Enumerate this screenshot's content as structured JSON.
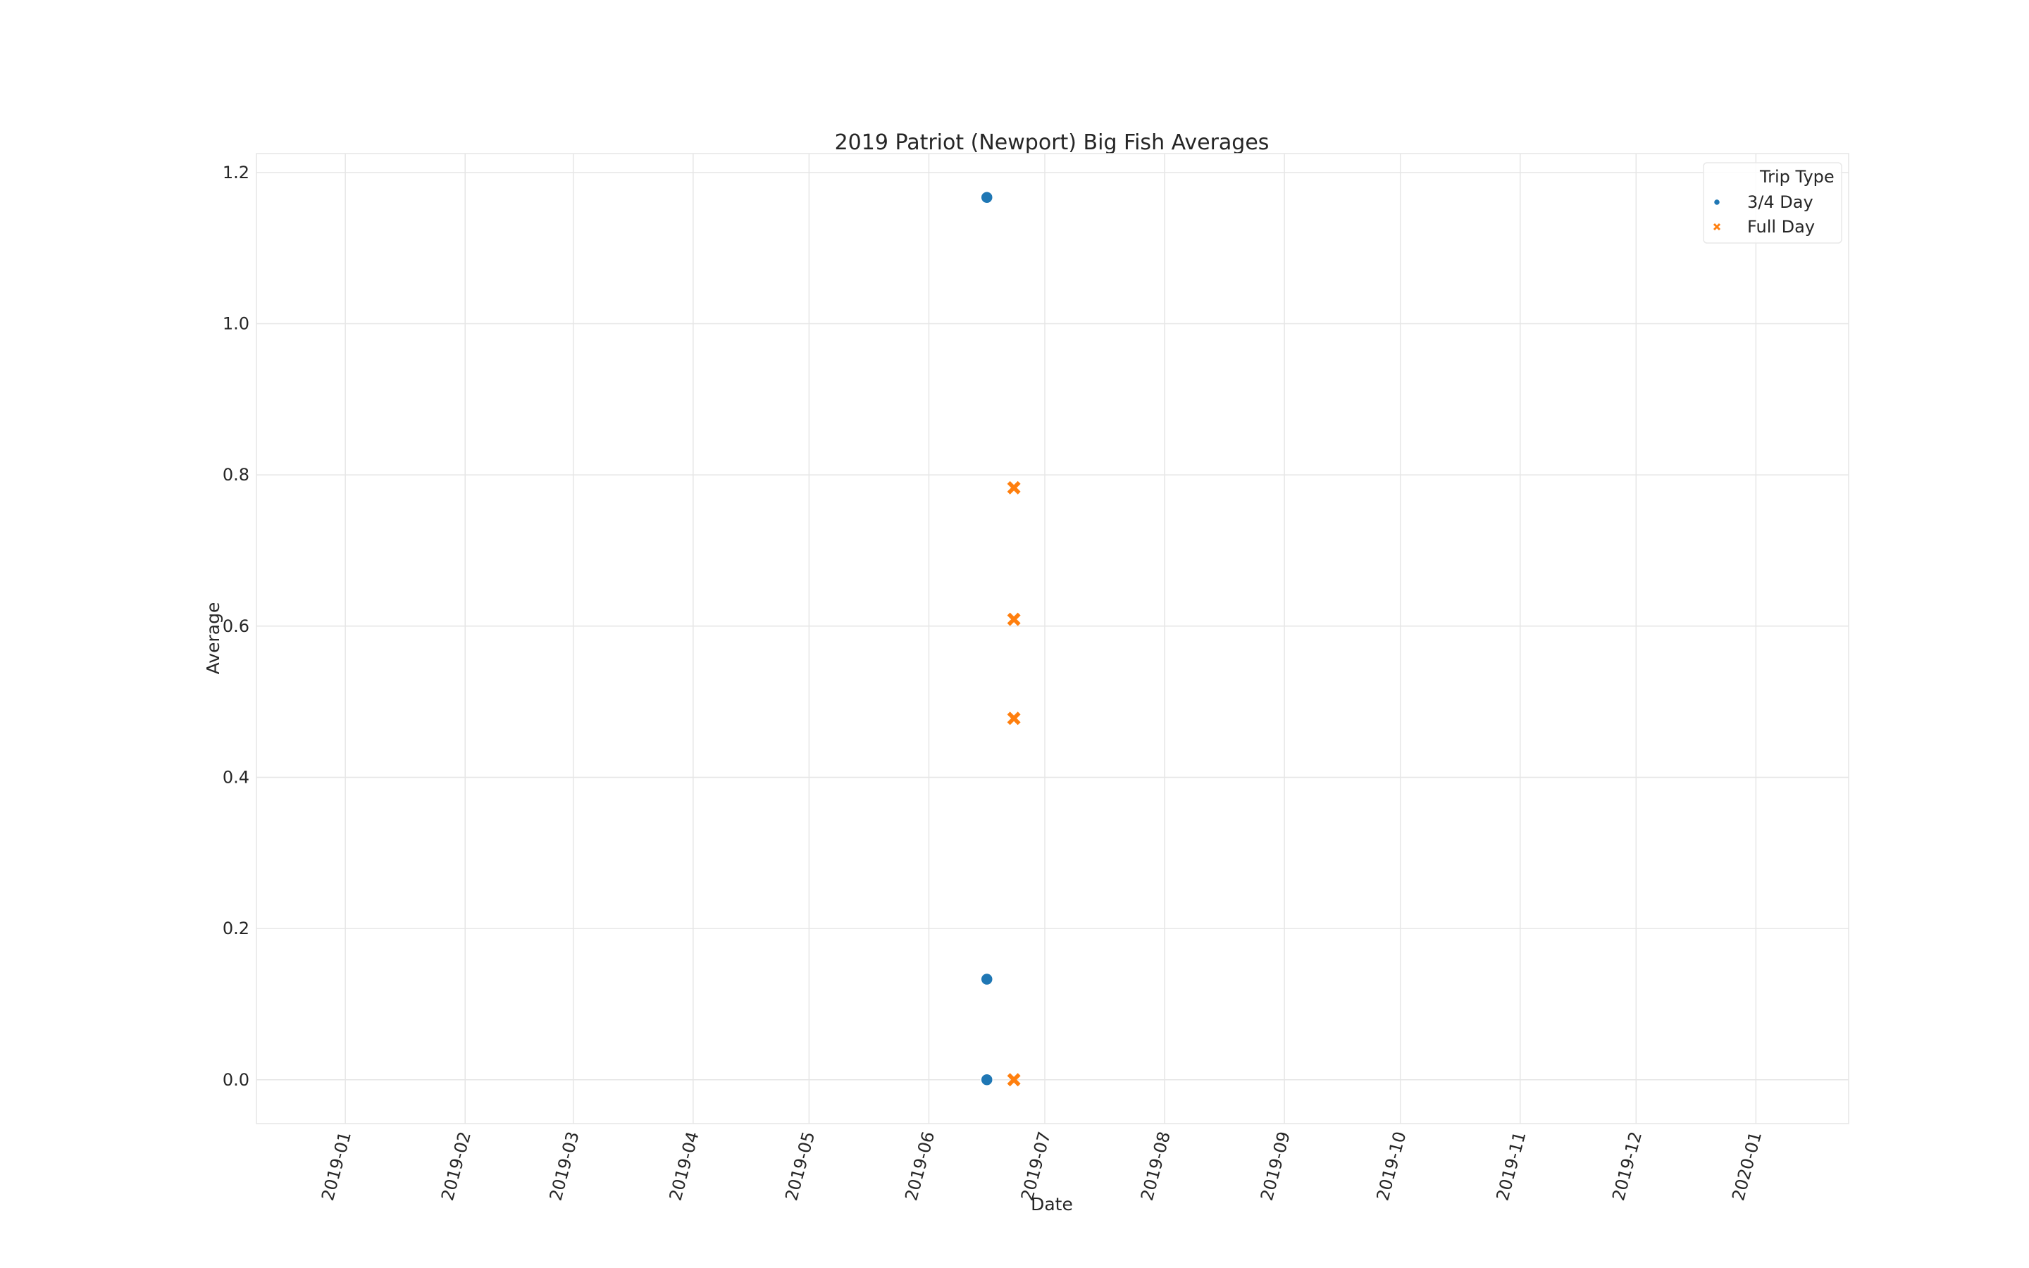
{
  "chart_data": {
    "type": "scatter",
    "title": "2019 Patriot (Newport) Big Fish Averages",
    "xlabel": "Date",
    "ylabel": "Average",
    "x_type": "date",
    "xlim": [
      "2018-12-09",
      "2020-01-25"
    ],
    "ylim": [
      -0.058,
      1.225
    ],
    "x_ticks": [
      "2019-01",
      "2019-02",
      "2019-03",
      "2019-04",
      "2019-05",
      "2019-06",
      "2019-07",
      "2019-08",
      "2019-09",
      "2019-10",
      "2019-11",
      "2019-12",
      "2020-01"
    ],
    "y_ticks": [
      "0.0",
      "0.2",
      "0.4",
      "0.6",
      "0.8",
      "1.0",
      "1.2"
    ],
    "grid": true,
    "legend": {
      "title": "Trip Type",
      "position": "top-right"
    },
    "series": [
      {
        "name": "3/4 Day",
        "marker": "circle",
        "color": "#1f77b4",
        "points": [
          {
            "x": "2019-06-16",
            "y": 1.167
          },
          {
            "x": "2019-06-16",
            "y": 0.133
          },
          {
            "x": "2019-06-16",
            "y": 0.0
          }
        ]
      },
      {
        "name": "Full Day",
        "marker": "x",
        "color": "#ff7f0e",
        "points": [
          {
            "x": "2019-06-23",
            "y": 0.783
          },
          {
            "x": "2019-06-23",
            "y": 0.609
          },
          {
            "x": "2019-06-23",
            "y": 0.478
          },
          {
            "x": "2019-06-23",
            "y": 0.0
          }
        ]
      }
    ]
  }
}
